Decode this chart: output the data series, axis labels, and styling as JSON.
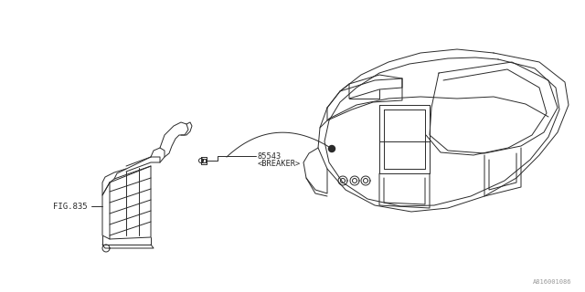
{
  "bg_color": "#ffffff",
  "line_color": "#2a2a2a",
  "text_color": "#2a2a2a",
  "part_number_breaker": "85543",
  "label_breaker": "<BREAKER>",
  "label_fig": "FIG.835",
  "diagram_code": "A816001086",
  "fig_width": 6.4,
  "fig_height": 3.2,
  "dpi": 100
}
